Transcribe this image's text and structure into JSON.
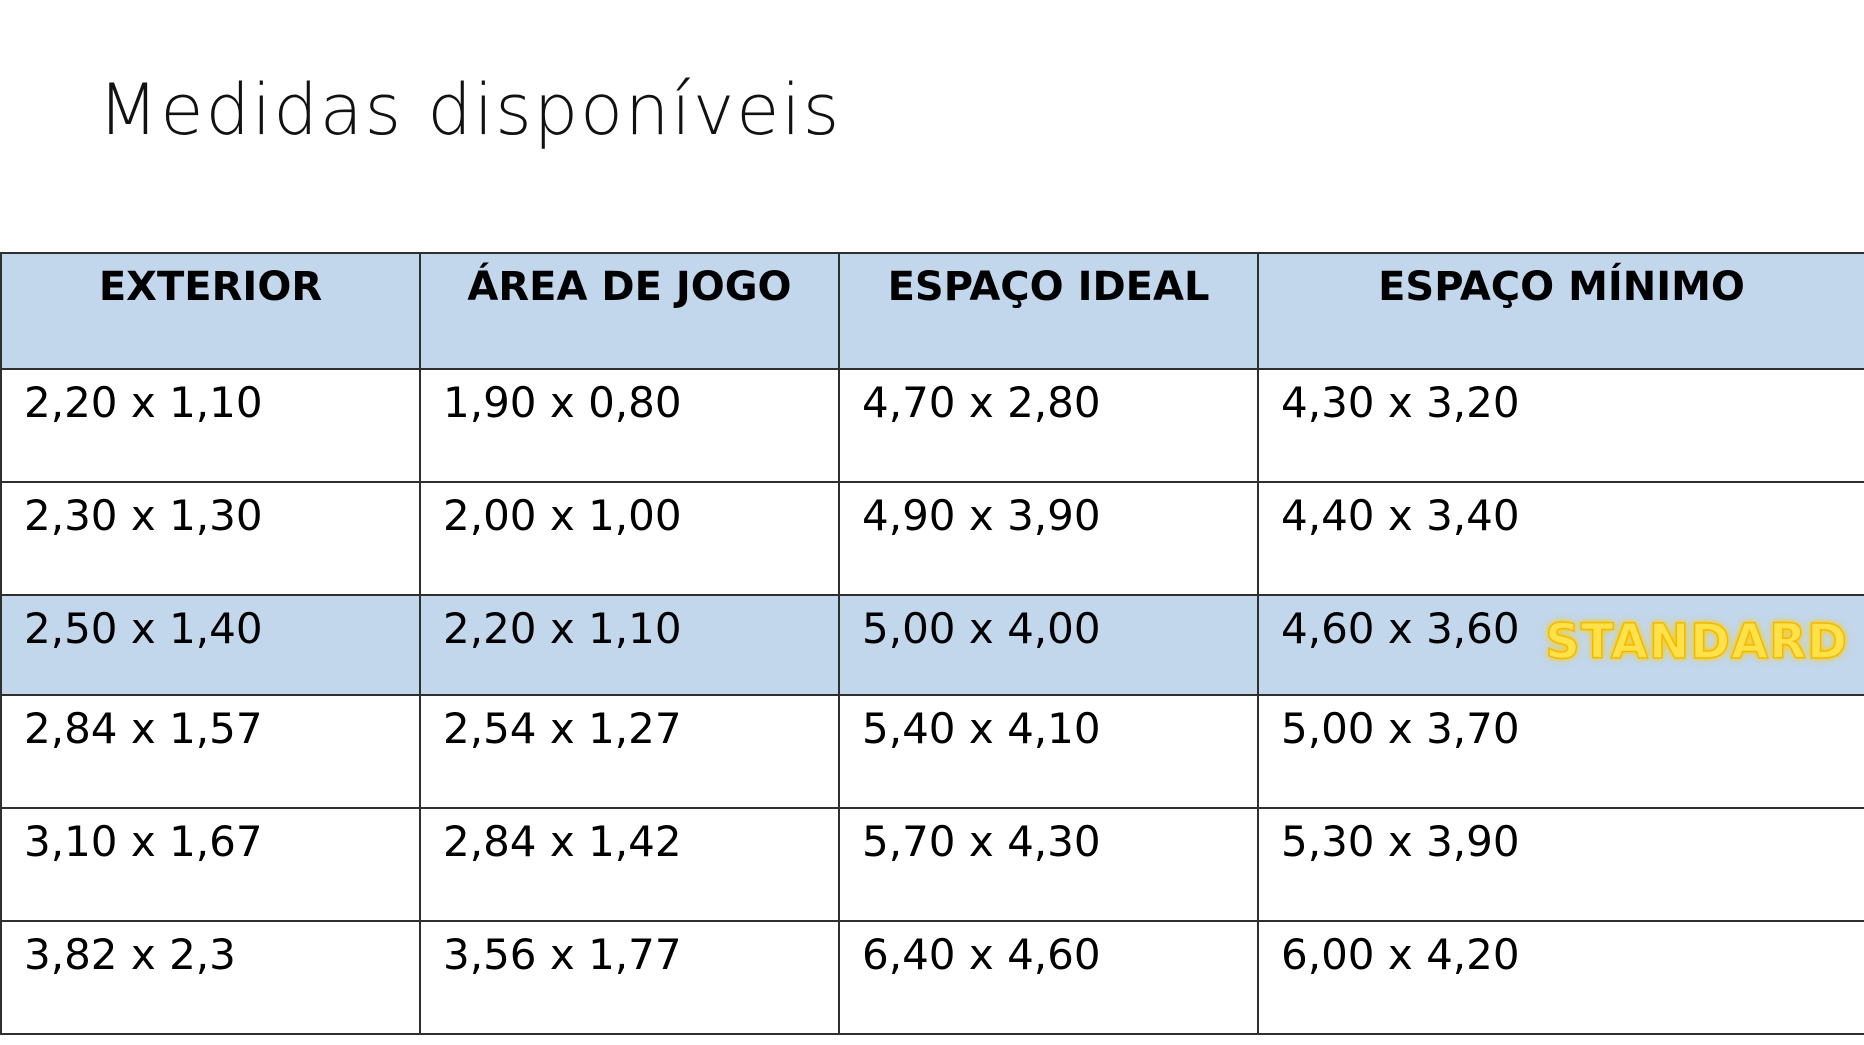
{
  "title": "Medidas disponíveis",
  "table": {
    "headers": [
      "EXTERIOR",
      "ÁREA DE JOGO",
      "ESPAÇO IDEAL",
      "ESPAÇO MÍNIMO"
    ],
    "rows": [
      [
        "2,20 x 1,10",
        "1,90 x 0,80",
        "4,70 x 2,80",
        "4,30 x 3,20"
      ],
      [
        "2,30 x 1,30",
        "2,00 x 1,00",
        "4,90 x 3,90",
        "4,40 x 3,40"
      ],
      [
        "2,50 x 1,40",
        "2,20 x 1,10",
        "5,00 x 4,00",
        "4,60 x 3,60"
      ],
      [
        "2,84 x 1,57",
        "2,54 x 1,27",
        "5,40 x 4,10",
        "5,00 x 3,70"
      ],
      [
        "3,10 x 1,67",
        "2,84 x 1,42",
        "5,70 x 4,30",
        "5,30 x 3,90"
      ],
      [
        "3,82 x 2,3",
        "3,56 x 1,77",
        "6,40 x 4,60",
        "6,00 x 4,20"
      ]
    ],
    "highlight_row": 2,
    "highlight_label": "STANDARD"
  },
  "colors": {
    "header_bg": "#c2d6ec",
    "highlight_bg": "#c2d6ec",
    "badge_text": "#ffe24a",
    "border": "#2f2f2f"
  }
}
